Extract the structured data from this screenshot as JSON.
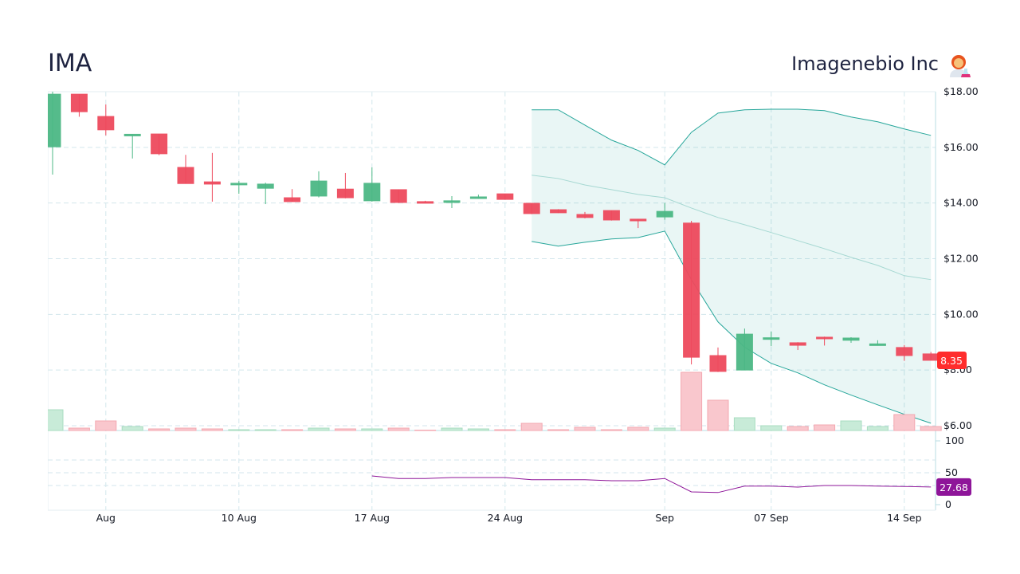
{
  "header": {
    "ticker": "IMA",
    "company": "Imagenebio Inc",
    "logo_icon": "woman-scientist-emoji"
  },
  "colors": {
    "up": "#26a65b",
    "down": "#ea3748",
    "band": "#26a69a",
    "rsi": "#8e1599",
    "last_price_badge": "#ff2d2d",
    "rsi_badge": "#8e1599"
  },
  "chart_data": [
    {
      "type": "candlestick",
      "y_axis": {
        "range": [
          6,
          18
        ],
        "ticks": [
          "$18.00",
          "$16.00",
          "$14.00",
          "$12.00",
          "$10.00",
          "$8.00",
          "$6.00"
        ],
        "tick_values": [
          18,
          16,
          14,
          12,
          10,
          8,
          6
        ]
      },
      "x_ticks": [
        {
          "label": "Aug",
          "index": 2
        },
        {
          "label": "10 Aug",
          "index": 7
        },
        {
          "label": "17 Aug",
          "index": 12
        },
        {
          "label": "24 Aug",
          "index": 17
        },
        {
          "label": "Sep",
          "index": 23
        },
        {
          "label": "07 Sep",
          "index": 27
        },
        {
          "label": "14 Sep",
          "index": 32
        }
      ],
      "grid": true,
      "ohlc": [
        [
          16.02,
          18.0,
          15.02,
          17.91
        ],
        [
          17.91,
          17.91,
          17.1,
          17.28
        ],
        [
          17.11,
          17.54,
          16.43,
          16.63
        ],
        [
          16.45,
          16.47,
          15.6,
          16.47
        ],
        [
          16.48,
          16.48,
          15.72,
          15.77
        ],
        [
          15.28,
          15.73,
          14.7,
          14.7
        ],
        [
          14.76,
          15.8,
          14.05,
          14.68
        ],
        [
          14.68,
          14.79,
          14.33,
          14.71
        ],
        [
          14.53,
          14.73,
          13.96,
          14.68
        ],
        [
          14.19,
          14.5,
          14.05,
          14.05
        ],
        [
          14.25,
          15.14,
          14.2,
          14.79
        ],
        [
          14.5,
          15.08,
          14.17,
          14.19
        ],
        [
          14.08,
          15.28,
          14.05,
          14.71
        ],
        [
          14.48,
          14.48,
          14.0,
          14.02
        ],
        [
          14.05,
          14.08,
          14.02,
          14.04
        ],
        [
          14.02,
          14.25,
          13.82,
          14.08
        ],
        [
          14.18,
          14.3,
          14.16,
          14.22
        ],
        [
          14.33,
          14.33,
          14.12,
          14.13
        ],
        [
          13.99,
          13.99,
          13.6,
          13.62
        ],
        [
          13.76,
          13.78,
          13.64,
          13.65
        ],
        [
          13.59,
          13.68,
          13.45,
          13.48
        ],
        [
          13.73,
          13.73,
          13.37,
          13.39
        ],
        [
          13.42,
          13.43,
          13.1,
          13.36
        ],
        [
          13.5,
          14.0,
          13.4,
          13.7
        ],
        [
          13.28,
          13.36,
          8.2,
          8.46
        ],
        [
          8.52,
          8.81,
          7.93,
          7.95
        ],
        [
          8.0,
          9.49,
          8.0,
          9.29
        ],
        [
          9.13,
          9.38,
          8.86,
          9.16
        ],
        [
          8.98,
          9.0,
          8.72,
          8.89
        ],
        [
          9.18,
          9.2,
          8.88,
          9.16
        ],
        [
          9.07,
          9.18,
          8.98,
          9.15
        ],
        [
          8.92,
          9.07,
          8.88,
          8.94
        ],
        [
          8.81,
          8.9,
          8.33,
          8.52
        ],
        [
          8.58,
          8.65,
          8.35,
          8.35
        ]
      ],
      "volume": [
        26,
        3,
        12,
        5,
        2,
        3,
        2,
        1,
        1,
        1,
        3,
        2,
        2,
        3,
        0.5,
        3,
        2,
        1,
        9,
        1,
        4,
        1,
        4,
        3,
        73,
        38,
        16,
        6,
        5,
        7,
        12,
        5,
        20,
        5
      ],
      "bollinger_start_index": 18,
      "bollinger": {
        "upper": [
          17.35,
          17.35,
          16.8,
          16.26,
          15.89,
          15.37,
          16.54,
          17.23,
          17.35,
          17.37,
          17.37,
          17.32,
          17.09,
          16.92,
          16.66,
          16.43
        ],
        "middle": [
          15.0,
          14.88,
          14.65,
          14.48,
          14.31,
          14.19,
          13.82,
          13.48,
          13.22,
          12.94,
          12.65,
          12.36,
          12.05,
          11.76,
          11.39,
          11.25
        ],
        "lower": [
          12.62,
          12.45,
          12.59,
          12.71,
          12.76,
          12.99,
          11.25,
          9.73,
          8.82,
          8.24,
          7.9,
          7.47,
          7.1,
          6.75,
          6.41,
          6.09
        ]
      },
      "last_price": "8.35"
    },
    {
      "type": "line",
      "y_axis": {
        "range": [
          0,
          100
        ],
        "ticks": [
          "100",
          "50",
          "0"
        ],
        "tick_values": [
          100,
          50,
          0
        ],
        "grid_values": [
          70,
          50,
          30
        ]
      },
      "start_index": 12,
      "values": [
        45,
        41,
        41,
        42.5,
        42.5,
        42.5,
        39,
        39,
        39,
        37.5,
        37.5,
        41,
        20,
        19,
        29,
        29,
        27.5,
        30,
        30,
        29,
        28.5,
        27.68
      ],
      "last_value": "27.68"
    }
  ]
}
